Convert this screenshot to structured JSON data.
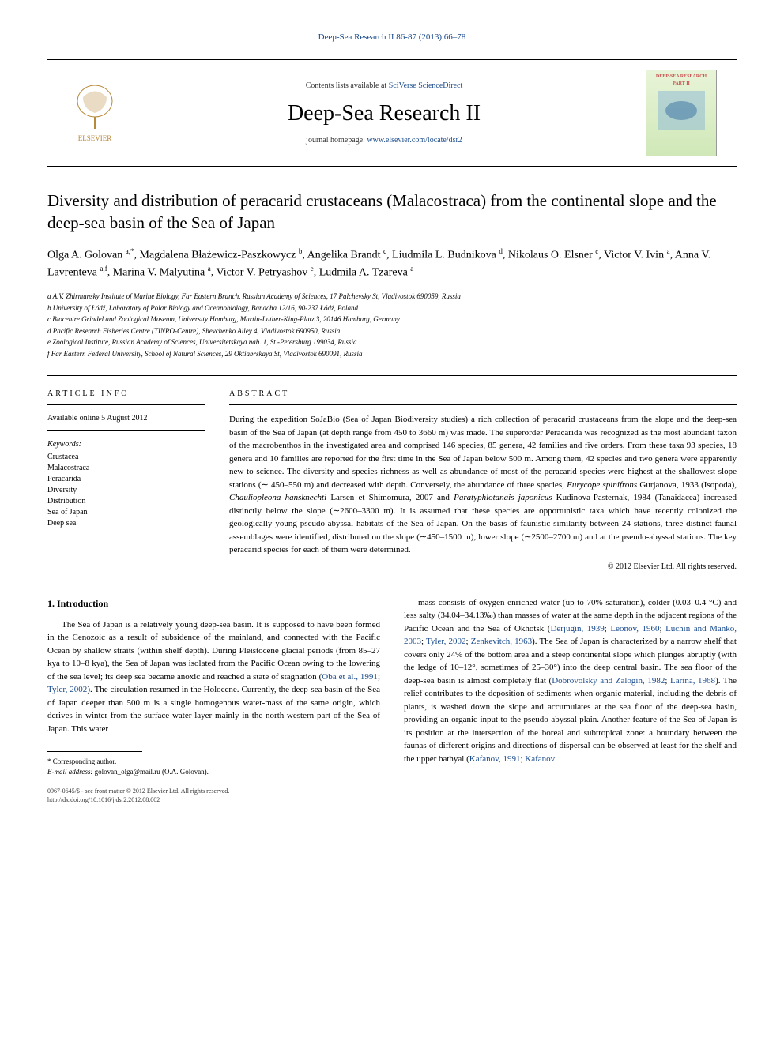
{
  "header": {
    "citation": "Deep-Sea Research II 86-87 (2013) 66–78",
    "contents_prefix": "Contents lists available at ",
    "contents_link": "SciVerse ScienceDirect",
    "journal_name": "Deep-Sea Research II",
    "homepage_prefix": "journal homepage: ",
    "homepage_link": "www.elsevier.com/locate/dsr2",
    "publisher_logo_label": "ELSEVIER",
    "cover_label": "DEEP-SEA RESEARCH PART II"
  },
  "article": {
    "title": "Diversity and distribution of peracarid crustaceans (Malacostraca) from the continental slope and the deep-sea basin of the Sea of Japan",
    "authors_html": "Olga A. Golovan <sup>a,*</sup>, Magdalena Błażewicz-Paszkowycz <sup>b</sup>, Angelika Brandt <sup>c</sup>, Liudmila L. Budnikova <sup>d</sup>, Nikolaus O. Elsner <sup>c</sup>, Victor V. Ivin <sup>a</sup>, Anna V. Lavrenteva <sup>a,f</sup>, Marina V. Malyutina <sup>a</sup>, Victor V. Petryashov <sup>e</sup>, Ludmila A. Tzareva <sup>a</sup>",
    "affiliations": [
      "a A.V. Zhirmunsky Institute of Marine Biology, Far Eastern Branch, Russian Academy of Sciences, 17 Palchevsky St, Vladivostok 690059, Russia",
      "b University of Łódź, Laboratory of Polar Biology and Oceanobiology, Banacha 12/16, 90-237 Łódź, Poland",
      "c Biocentre Grindel and Zoological Museum, University Hamburg, Martin-Luther-King-Platz 3, 20146 Hamburg, Germany",
      "d Pacific Research Fisheries Centre (TINRO-Centre), Shevchenko Alley 4, Vladivostok 690950, Russia",
      "e Zoological Institute, Russian Academy of Sciences, Universitetskaya nab. 1, St.-Petersburg 199034, Russia",
      "f Far Eastern Federal University, School of Natural Sciences, 29 Oktiabrskaya St, Vladivostok 690091, Russia"
    ]
  },
  "info": {
    "heading": "ARTICLE INFO",
    "available": "Available online 5 August 2012",
    "keywords_label": "Keywords:",
    "keywords": [
      "Crustacea",
      "Malacostraca",
      "Peracarida",
      "Diversity",
      "Distribution",
      "Sea of Japan",
      "Deep sea"
    ]
  },
  "abstract": {
    "heading": "ABSTRACT",
    "text_html": "During the expedition SoJaBio (Sea of Japan Biodiversity studies) a rich collection of peracarid crustaceans from the slope and the deep-sea basin of the Sea of Japan (at depth range from 450 to 3660 m) was made. The superorder Peracarida was recognized as the most abundant taxon of the macrobenthos in the investigated area and comprised 146 species, 85 genera, 42 families and five orders. From these taxa 93 species, 18 genera and 10 families are reported for the first time in the Sea of Japan below 500 m. Among them, 42 species and two genera were apparently new to science. The diversity and species richness as well as abundance of most of the peracarid species were highest at the shallowest slope stations (∼ 450–550 m) and decreased with depth. Conversely, the abundance of three species, <em>Eurycope spinifrons</em> Gurjanova, 1933 (Isopoda), <em>Chauliopleona hansknechti</em> Larsen et Shimomura, 2007 and <em>Paratyphlotanais japonicus</em> Kudinova-Pasternak, 1984 (Tanaidacea) increased distinctly below the slope (∼2600–3300 m). It is assumed that these species are opportunistic taxa which have recently colonized the geologically young pseudo-abyssal habitats of the Sea of Japan. On the basis of faunistic similarity between 24 stations, three distinct faunal assemblages were identified, distributed on the slope (∼450–1500 m), lower slope (∼2500–2700 m) and at the pseudo-abyssal stations. The key peracarid species for each of them were determined.",
    "copyright": "© 2012 Elsevier Ltd. All rights reserved."
  },
  "body": {
    "section_heading": "1. Introduction",
    "col1_html": "The Sea of Japan is a relatively young deep-sea basin. It is supposed to have been formed in the Cenozoic as a result of subsidence of the mainland, and connected with the Pacific Ocean by shallow straits (within shelf depth). During Pleistocene glacial periods (from 85–27 kya to 10–8 kya), the Sea of Japan was isolated from the Pacific Ocean owing to the lowering of the sea level; its deep sea became anoxic and reached a state of stagnation (<span class=\"ref\">Oba et al., 1991</span>; <span class=\"ref\">Tyler, 2002</span>). The circulation resumed in the Holocene. Currently, the deep-sea basin of the Sea of Japan deeper than 500 m is a single homogenous water-mass of the same origin, which derives in winter from the surface water layer mainly in the north-western part of the Sea of Japan. This water",
    "col2_html": "mass consists of oxygen-enriched water (up to 70% saturation), colder (0.03–0.4 °C) and less salty (34.04–34.13‰) than masses of water at the same depth in the adjacent regions of the Pacific Ocean and the Sea of Okhotsk (<span class=\"ref\">Derjugin, 1939</span>; <span class=\"ref\">Leonov, 1960</span>; <span class=\"ref\">Luchin and Manko, 2003</span>; <span class=\"ref\">Tyler, 2002</span>; <span class=\"ref\">Zenkevitch, 1963</span>). The Sea of Japan is characterized by a narrow shelf that covers only 24% of the bottom area and a steep continental slope which plunges abruptly (with the ledge of 10–12°, sometimes of 25–30°) into the deep central basin. The sea floor of the deep-sea basin is almost completely flat (<span class=\"ref\">Dobrovolsky and Zalogin, 1982</span>; <span class=\"ref\">Larina, 1968</span>). The relief contributes to the deposition of sediments when organic material, including the debris of plants, is washed down the slope and accumulates at the sea floor of the deep-sea basin, providing an organic input to the pseudo-abyssal plain. Another feature of the Sea of Japan is its position at the intersection of the boreal and subtropical zone: a boundary between the faunas of different origins and directions of dispersal can be observed at least for the shelf and the upper bathyal (<span class=\"ref\">Kafanov, 1991</span>; <span class=\"ref\">Kafanov</span>"
  },
  "footnote": {
    "corresponding": "* Corresponding author.",
    "email_label": "E-mail address:",
    "email": "golovan_olga@mail.ru (O.A. Golovan)."
  },
  "footer": {
    "line1": "0967-0645/$ - see front matter © 2012 Elsevier Ltd. All rights reserved.",
    "line2": "http://dx.doi.org/10.1016/j.dsr2.2012.08.002"
  },
  "colors": {
    "link": "#1a4b8c",
    "text": "#000000",
    "background": "#ffffff"
  }
}
